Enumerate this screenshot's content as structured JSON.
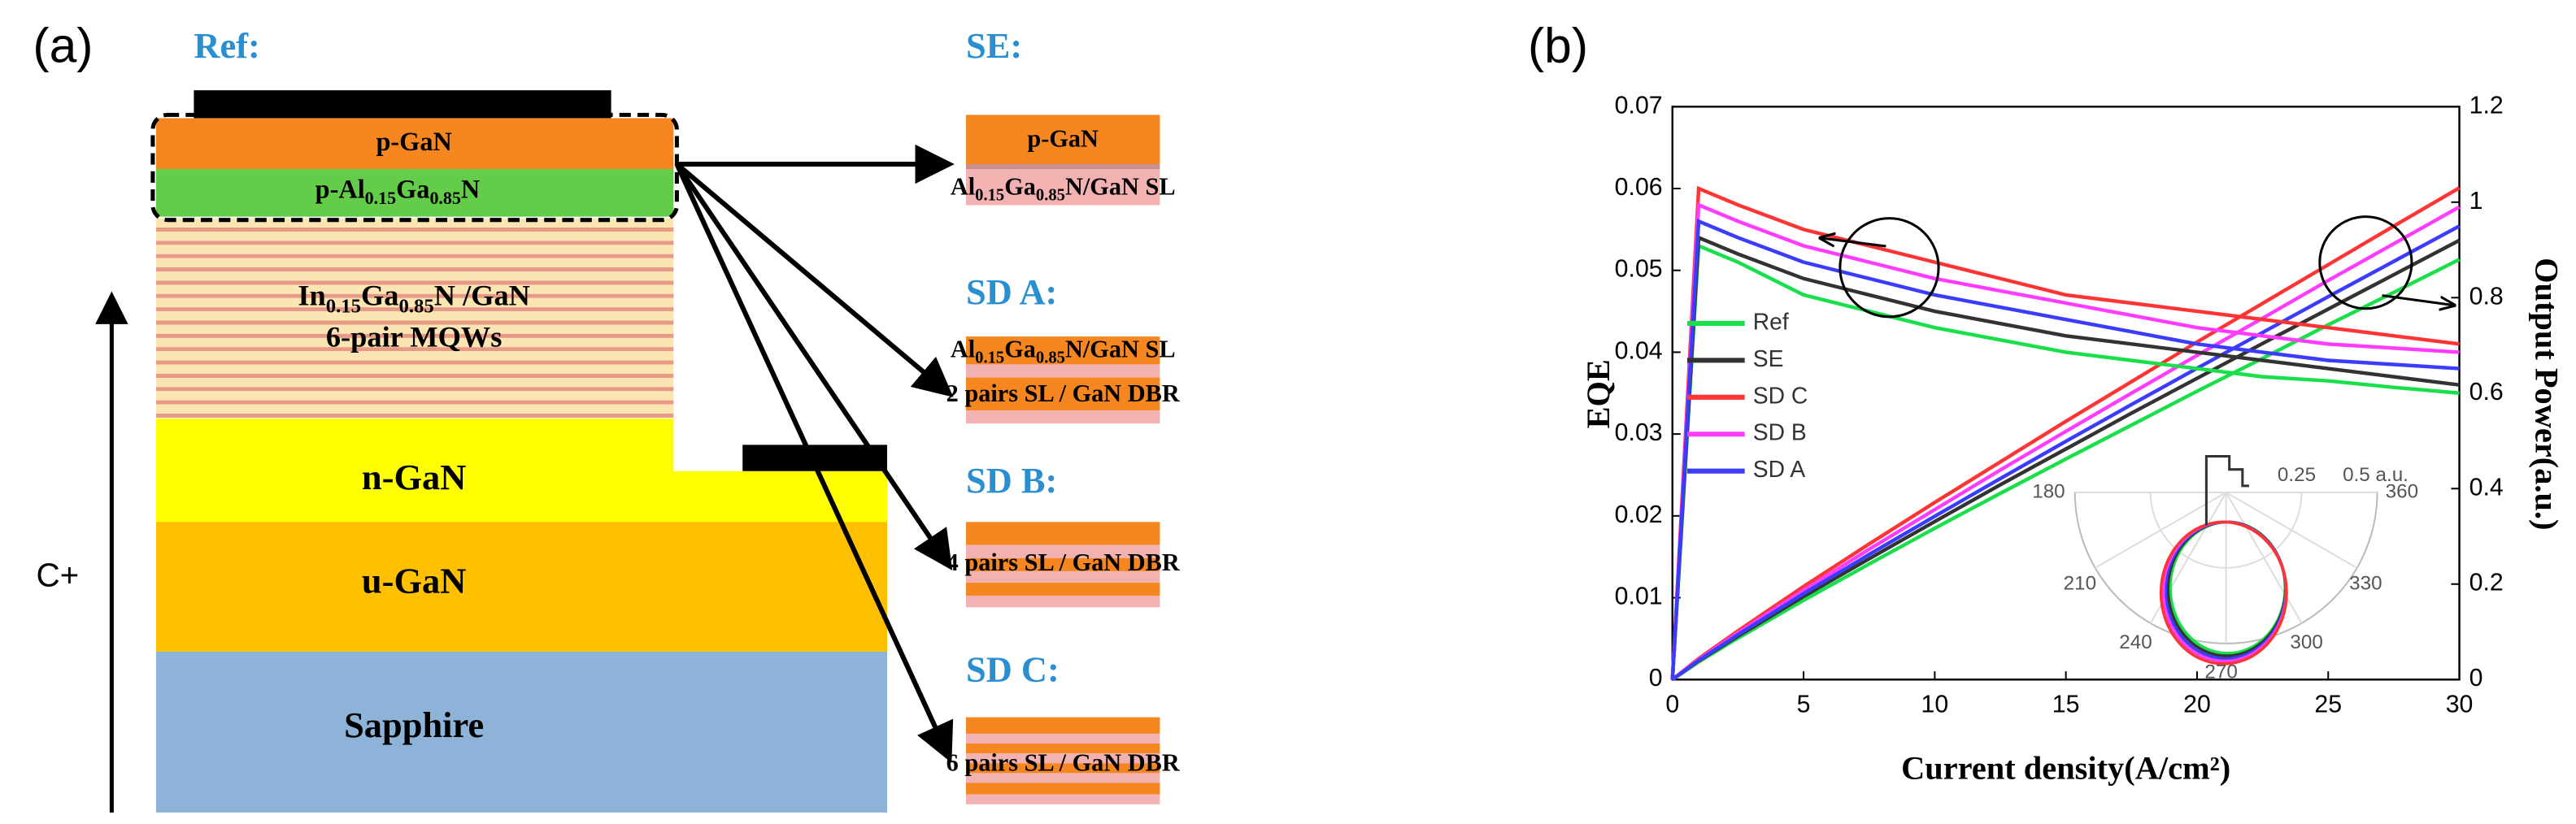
{
  "panel_a": {
    "label": "(a)",
    "ref": {
      "title": "Ref:",
      "p_gan": "p-GaN",
      "p_algan": [
        "p-Al",
        "0.15",
        "Ga",
        "0.85",
        "N"
      ],
      "mqw": [
        "In",
        "0.15",
        "Ga",
        "0.85",
        "N /GaN"
      ],
      "mqw_pairs": "6-pair MQWs",
      "n_gan": "n-GaN",
      "u_gan": "u-GaN",
      "sapphire": "Sapphire",
      "axis": "C+"
    },
    "variants": [
      {
        "title": "SE:",
        "lines": [
          [
            "p-GaN"
          ],
          [
            "Al",
            "0.15",
            "Ga",
            "0.85",
            "N/GaN SL"
          ]
        ]
      },
      {
        "title": "SD A:",
        "lines": [
          [
            "Al",
            "0.15",
            "Ga",
            "0.85",
            "N/GaN SL"
          ],
          [
            "2 pairs SL / GaN DBR"
          ]
        ]
      },
      {
        "title": "SD B:",
        "lines": [
          [
            "4 pairs SL / GaN DBR"
          ]
        ]
      },
      {
        "title": "SD C:",
        "lines": [
          [
            "6 pairs SL / GaN DBR"
          ]
        ]
      }
    ]
  },
  "chart_data": {
    "type": "line",
    "label": "(b)",
    "xlabel": "Current density(A/cm²)",
    "ylabel": "EQE",
    "y2label": "Output Power(a.u.)",
    "x": [
      0,
      1,
      2.5,
      5,
      7.5,
      10,
      12.5,
      15,
      17.5,
      20,
      22.5,
      25,
      27.5,
      30
    ],
    "xlim": [
      0,
      30
    ],
    "xticks": [
      0,
      5,
      10,
      15,
      20,
      25,
      30
    ],
    "ylim": [
      0,
      0.07
    ],
    "yticks": [
      0,
      0.01,
      0.02,
      0.03,
      0.04,
      0.05,
      0.06,
      0.07
    ],
    "y2lim": [
      0,
      1.2
    ],
    "y2ticks": [
      0,
      0.2,
      0.4,
      0.6,
      0.8,
      1,
      1.2
    ],
    "series": [
      {
        "name": "Ref",
        "color": "#19e04a",
        "values": [
          0,
          0.053,
          0.051,
          0.047,
          0.045,
          0.043,
          0.0415,
          0.04,
          0.039,
          0.038,
          0.037,
          0.0365,
          0.0357,
          0.035
        ]
      },
      {
        "name": "SE",
        "color": "#333333",
        "values": [
          0,
          0.054,
          0.052,
          0.049,
          0.047,
          0.045,
          0.0435,
          0.042,
          0.041,
          0.04,
          0.039,
          0.038,
          0.037,
          0.036
        ]
      },
      {
        "name": "SD C",
        "color": "#ff3535",
        "values": [
          0,
          0.06,
          0.058,
          0.055,
          0.053,
          0.051,
          0.049,
          0.047,
          0.046,
          0.045,
          0.044,
          0.043,
          0.042,
          0.041
        ]
      },
      {
        "name": "SD B",
        "color": "#ff3cff",
        "values": [
          0,
          0.058,
          0.056,
          0.053,
          0.051,
          0.049,
          0.0475,
          0.046,
          0.0445,
          0.043,
          0.042,
          0.041,
          0.0405,
          0.04
        ]
      },
      {
        "name": "SD A",
        "color": "#3c3cff",
        "values": [
          0,
          0.056,
          0.054,
          0.051,
          0.049,
          0.047,
          0.0455,
          0.044,
          0.0425,
          0.041,
          0.04,
          0.039,
          0.0385,
          0.038
        ]
      }
    ],
    "y2_series": [
      {
        "color": "#19e04a",
        "axis": "y2",
        "values": [
          0,
          0.037,
          0.087,
          0.166,
          0.242,
          0.317,
          0.39,
          0.462,
          0.533,
          0.604,
          0.673,
          0.743,
          0.811,
          0.88
        ]
      },
      {
        "color": "#333333",
        "axis": "y2",
        "values": [
          0,
          0.039,
          0.091,
          0.174,
          0.253,
          0.331,
          0.408,
          0.483,
          0.558,
          0.631,
          0.704,
          0.776,
          0.848,
          0.92
        ]
      },
      {
        "color": "#ff3535",
        "axis": "y2",
        "values": [
          0,
          0.044,
          0.102,
          0.195,
          0.284,
          0.371,
          0.456,
          0.541,
          0.624,
          0.707,
          0.788,
          0.869,
          0.95,
          1.03
        ]
      },
      {
        "color": "#ff3cff",
        "axis": "y2",
        "values": [
          0,
          0.042,
          0.098,
          0.187,
          0.273,
          0.356,
          0.439,
          0.52,
          0.6,
          0.679,
          0.757,
          0.836,
          0.913,
          0.99
        ]
      },
      {
        "color": "#3c3cff",
        "axis": "y2",
        "values": [
          0,
          0.04,
          0.094,
          0.18,
          0.262,
          0.342,
          0.421,
          0.499,
          0.576,
          0.652,
          0.727,
          0.802,
          0.876,
          0.95
        ]
      }
    ],
    "inset": {
      "angle_labels": [
        "180",
        "210",
        "240",
        "270",
        "300",
        "330",
        "360"
      ],
      "radial_labels": [
        "0.25",
        "0.5 a.u."
      ]
    }
  }
}
